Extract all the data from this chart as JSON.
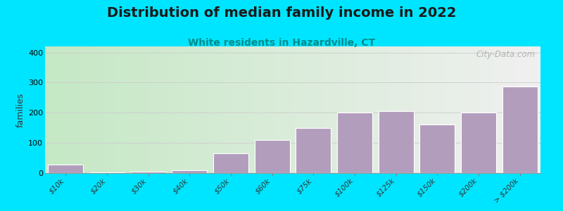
{
  "title": "Distribution of median family income in 2022",
  "subtitle": "White residents in Hazardville, CT",
  "categories": [
    "$10k",
    "$20k",
    "$30k",
    "$40k",
    "$50k",
    "$60k",
    "$75k",
    "$100k",
    "$125k",
    "$150k",
    "$200k",
    "> $200k"
  ],
  "values": [
    28,
    2,
    5,
    10,
    65,
    110,
    150,
    200,
    205,
    160,
    200,
    288
  ],
  "bar_color": "#b39dbd",
  "bar_edge_color": "#ffffff",
  "background_outer": "#00e5ff",
  "ylabel": "families",
  "ylim": [
    0,
    420
  ],
  "yticks": [
    0,
    100,
    200,
    300,
    400
  ],
  "grid_color": "#cccccc",
  "title_fontsize": 14,
  "subtitle_fontsize": 10,
  "subtitle_color": "#008b8b",
  "title_color": "#1a1a1a",
  "watermark_text": "City-Data.com",
  "watermark_color": "#aaaaaa",
  "bg_left_color": "#c5e8c5",
  "bg_right_color": "#f0f0f0"
}
